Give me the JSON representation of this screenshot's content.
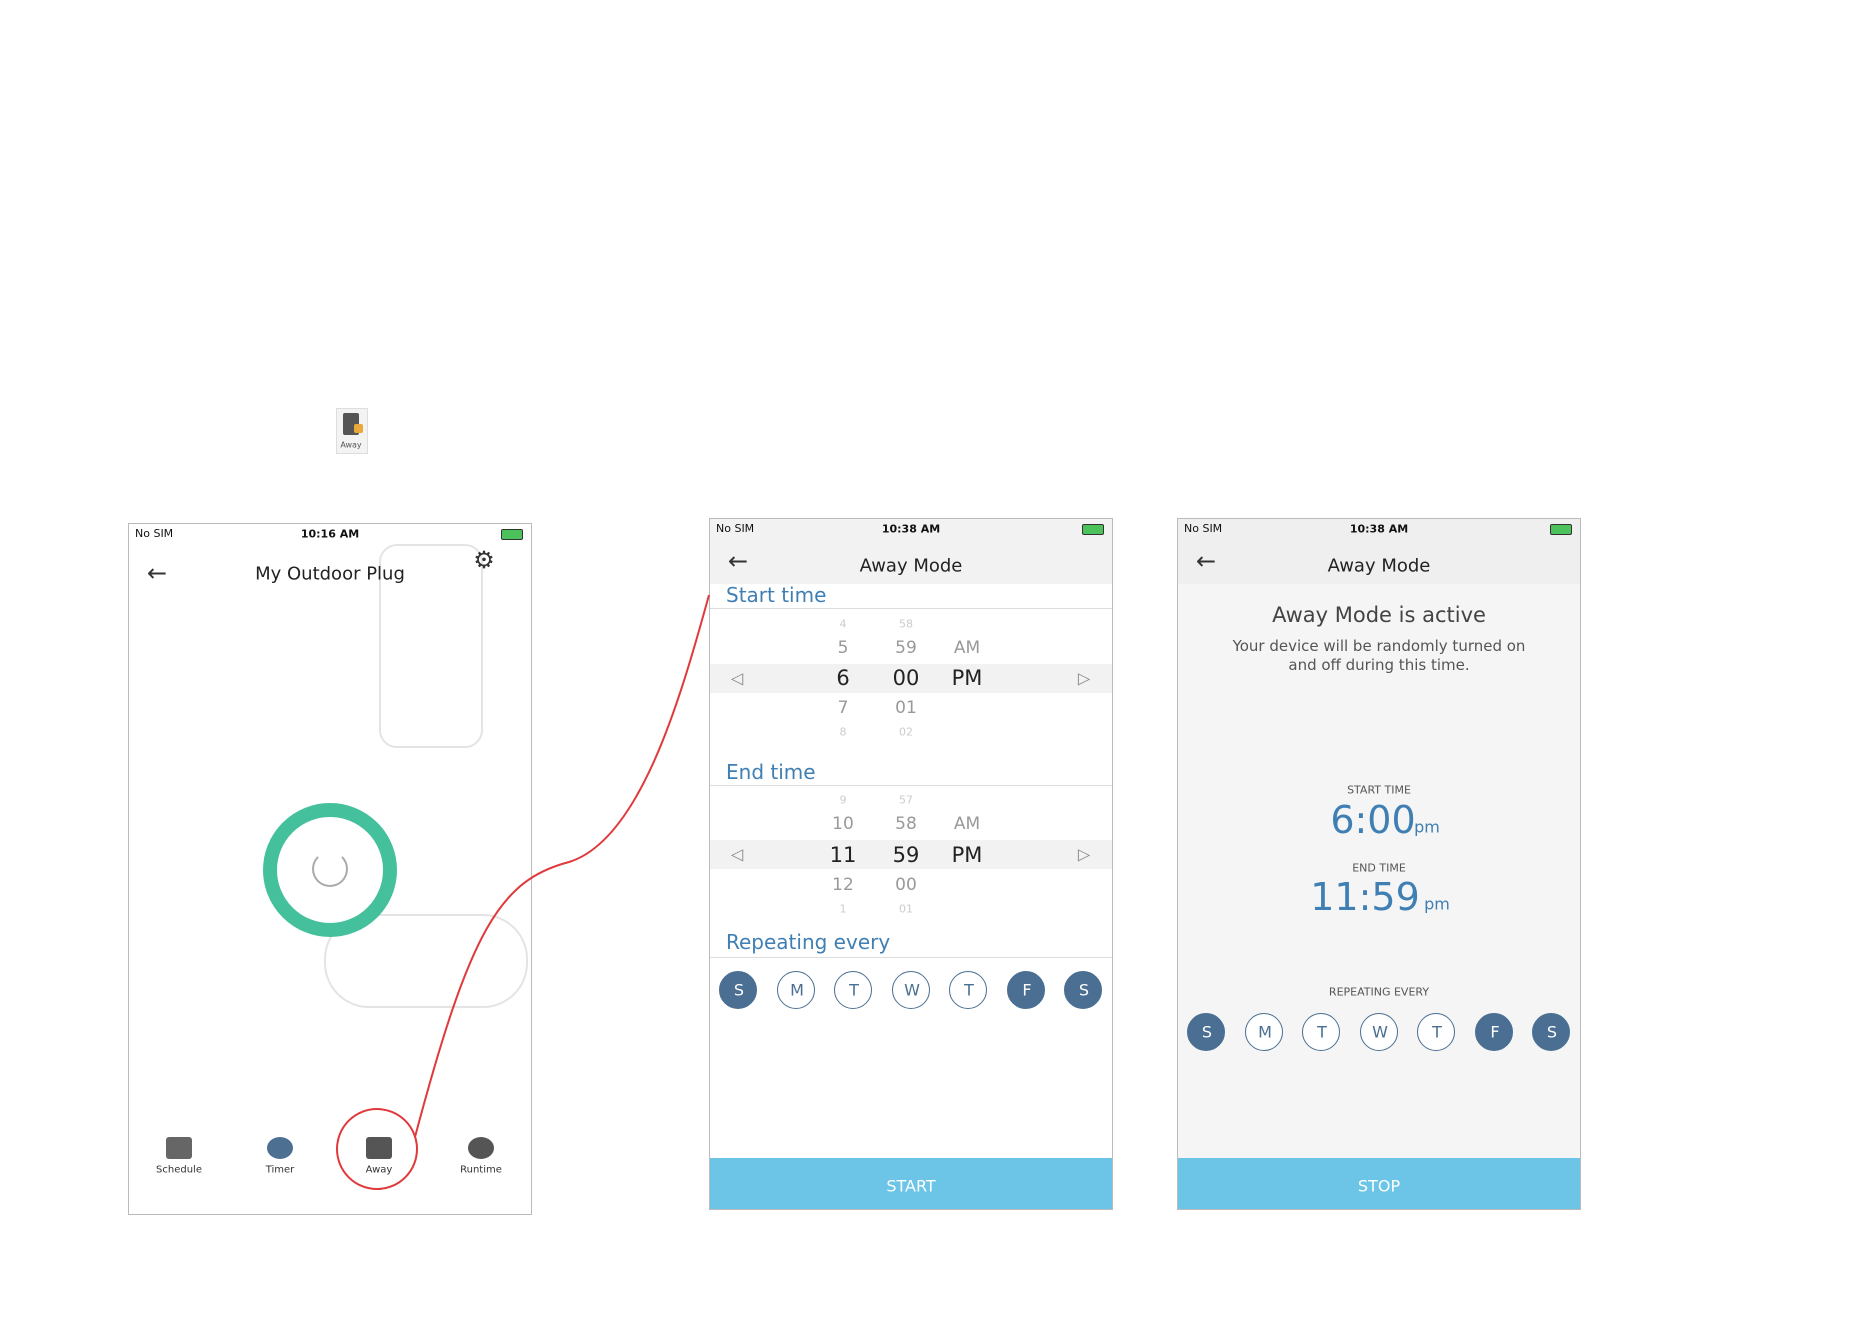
{
  "icon_label": "Away",
  "screens": [
    {
      "status": {
        "carrier": "No SIM",
        "time": "10:16 AM"
      },
      "title": "My Outdoor Plug",
      "tabs": [
        "Schedule",
        "Timer",
        "Away",
        "Runtime"
      ]
    },
    {
      "status": {
        "carrier": "No SIM",
        "time": "10:38 AM"
      },
      "title": "Away Mode",
      "start": {
        "label": "Start time",
        "hours": [
          "4",
          "5",
          "6",
          "7",
          "8"
        ],
        "minutes": [
          "58",
          "59",
          "00",
          "01",
          "02"
        ],
        "periods": [
          "AM",
          "PM"
        ]
      },
      "end": {
        "label": "End time",
        "hours": [
          "9",
          "10",
          "11",
          "12",
          "1"
        ],
        "minutes": [
          "57",
          "58",
          "59",
          "00",
          "01"
        ],
        "periods": [
          "AM",
          "PM"
        ]
      },
      "repeat_label": "Repeating every",
      "days": [
        {
          "label": "S",
          "selected": true
        },
        {
          "label": "M",
          "selected": false
        },
        {
          "label": "T",
          "selected": false
        },
        {
          "label": "W",
          "selected": false
        },
        {
          "label": "T",
          "selected": false
        },
        {
          "label": "F",
          "selected": true
        },
        {
          "label": "S",
          "selected": true
        }
      ],
      "button": "START"
    },
    {
      "status": {
        "carrier": "No SIM",
        "time": "10:38 AM"
      },
      "title": "Away Mode",
      "heading": "Away Mode is active",
      "description": [
        "Your device will be randomly turned on",
        "and off during this time."
      ],
      "start_label": "START TIME",
      "start_time": "6:00",
      "start_period": "pm",
      "end_label": "END TIME",
      "end_time": "11:59",
      "end_period": "pm",
      "repeat_label": "REPEATING EVERY",
      "days": [
        {
          "label": "S",
          "selected": true
        },
        {
          "label": "M",
          "selected": false
        },
        {
          "label": "T",
          "selected": false
        },
        {
          "label": "W",
          "selected": false
        },
        {
          "label": "T",
          "selected": false
        },
        {
          "label": "F",
          "selected": true
        },
        {
          "label": "S",
          "selected": true
        }
      ],
      "button": "STOP"
    }
  ]
}
